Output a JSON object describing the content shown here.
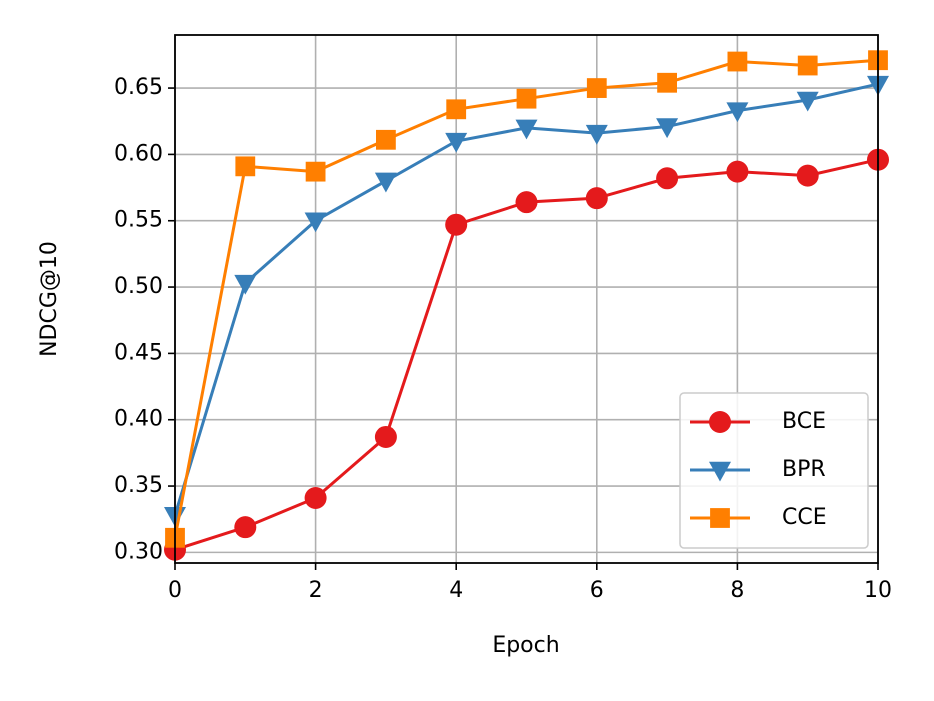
{
  "chart_data": {
    "type": "line",
    "xlabel": "Epoch",
    "ylabel": "NDCG@10",
    "x": [
      0,
      1,
      2,
      3,
      4,
      5,
      6,
      7,
      8,
      9,
      10
    ],
    "series": [
      {
        "name": "BCE",
        "color": "#e41a1c",
        "marker": "circle",
        "values": [
          0.302,
          0.319,
          0.341,
          0.387,
          0.547,
          0.564,
          0.567,
          0.582,
          0.587,
          0.584,
          0.596
        ]
      },
      {
        "name": "BPR",
        "color": "#377eb8",
        "marker": "triangle-down",
        "values": [
          0.328,
          0.503,
          0.55,
          0.58,
          0.61,
          0.62,
          0.616,
          0.621,
          0.633,
          0.641,
          0.653
        ]
      },
      {
        "name": "CCE",
        "color": "#ff7f00",
        "marker": "square",
        "values": [
          0.311,
          0.591,
          0.587,
          0.611,
          0.634,
          0.642,
          0.65,
          0.654,
          0.67,
          0.667,
          0.671
        ]
      }
    ],
    "xlim": [
      0,
      10
    ],
    "xticks": [
      0,
      2,
      4,
      6,
      8,
      10
    ],
    "ylim": [
      0.292,
      0.69
    ],
    "yticks": [
      {
        "value": 0.3,
        "label": "0.30"
      },
      {
        "value": 0.35,
        "label": "0.35"
      },
      {
        "value": 0.4,
        "label": "0.40"
      },
      {
        "value": 0.45,
        "label": "0.45"
      },
      {
        "value": 0.5,
        "label": "0.50"
      },
      {
        "value": 0.55,
        "label": "0.55"
      },
      {
        "value": 0.6,
        "label": "0.60"
      },
      {
        "value": 0.65,
        "label": "0.65"
      }
    ],
    "grid": true,
    "legend": "lower right"
  }
}
